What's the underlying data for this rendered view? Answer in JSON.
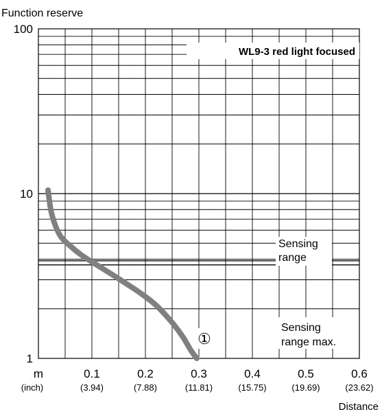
{
  "chart_data": {
    "type": "line",
    "ylabel": "Function reserve",
    "xlabel": "Distance",
    "y_scale": "log",
    "ylim": [
      1,
      100
    ],
    "y_ticks": [
      "1",
      "10",
      "100"
    ],
    "xlim": [
      0,
      0.6
    ],
    "x_ticks": [
      "0.1",
      "0.2",
      "0.3",
      "0.4",
      "0.5",
      "0.6"
    ],
    "x_ticks_inch": [
      "(3.94)",
      "(7.88)",
      "(11.81)",
      "(15.75)",
      "(19.69)",
      "(23.62)"
    ],
    "x_unit": "m",
    "x_unit_inch": "(inch)",
    "grid": true,
    "legend": "WL9-3 red light focused",
    "series": [
      {
        "label": "①",
        "color": "#808080",
        "x": [
          0.018,
          0.025,
          0.04,
          0.06,
          0.08,
          0.1,
          0.13,
          0.16,
          0.19,
          0.22,
          0.25,
          0.27,
          0.285,
          0.296
        ],
        "y": [
          10.5,
          7.5,
          5.6,
          4.8,
          4.25,
          3.85,
          3.35,
          2.9,
          2.5,
          2.1,
          1.65,
          1.35,
          1.12,
          1.0
        ]
      }
    ],
    "annotations": [
      {
        "text_line1": "Sensing",
        "text_line2": "range",
        "at_y": 3.8
      },
      {
        "text_line1": "Sensing",
        "text_line2": "range max.",
        "at_y": 1.0
      }
    ]
  }
}
